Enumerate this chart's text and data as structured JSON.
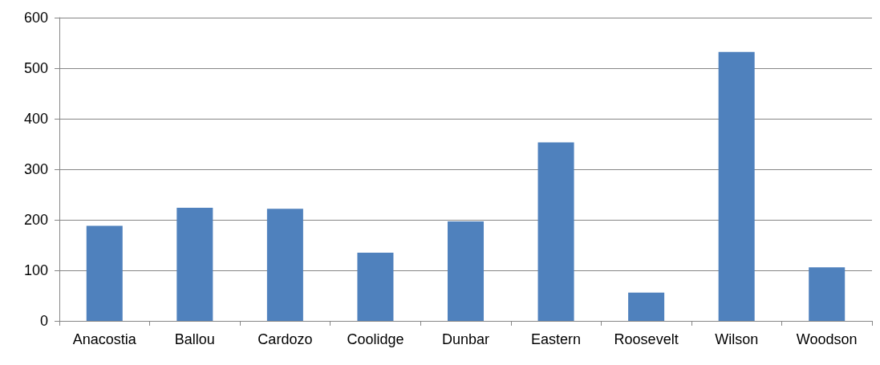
{
  "chart_data": {
    "type": "bar",
    "categories": [
      "Anacostia",
      "Ballou",
      "Cardozo",
      "Coolidge",
      "Dunbar",
      "Eastern",
      "Roosevelt",
      "Wilson",
      "Woodson"
    ],
    "values": [
      188,
      224,
      222,
      135,
      197,
      353,
      56,
      532,
      106
    ],
    "color": "#4f81bd",
    "ylim": [
      0,
      600
    ],
    "yticks": [
      0,
      100,
      200,
      300,
      400,
      500,
      600
    ],
    "grid": "y"
  }
}
